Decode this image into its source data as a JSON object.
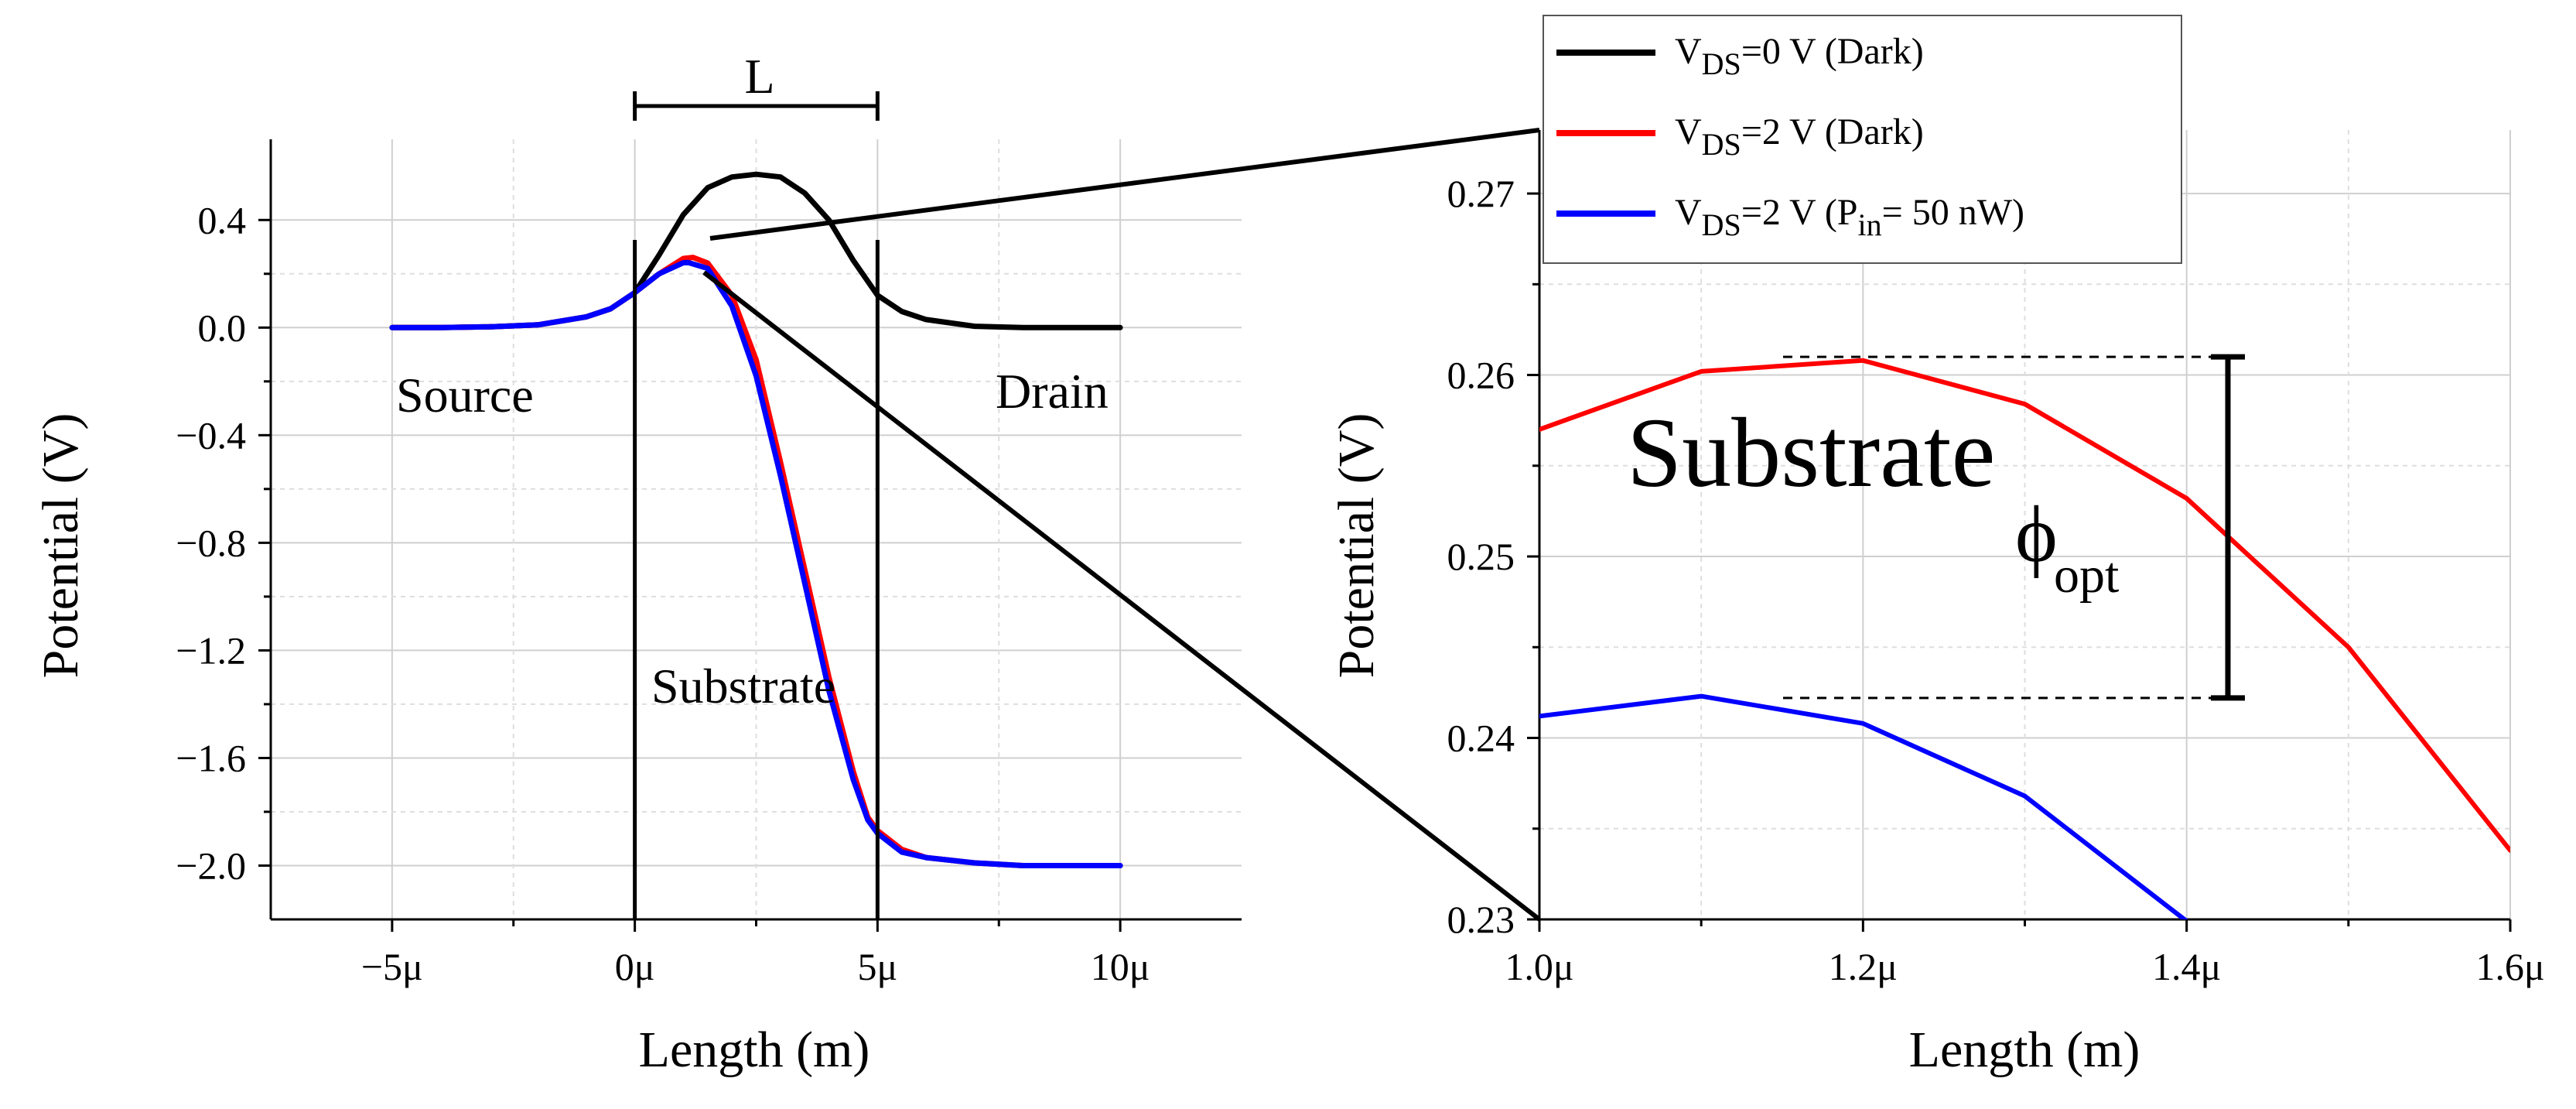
{
  "chart_data": [
    {
      "type": "line",
      "panel": "main",
      "xlabel": "Length (m)",
      "ylabel": "Potential (V)",
      "xlim": [
        -7.5,
        12.5
      ],
      "ylim": [
        -2.2,
        0.7
      ],
      "xticks": [
        -5,
        0,
        5,
        10
      ],
      "xtick_labels": [
        "−5μ",
        "0μ",
        "5μ",
        "10μ"
      ],
      "yticks": [
        0.4,
        0.0,
        -0.4,
        -0.8,
        -1.2,
        -1.6,
        -2.0
      ],
      "ytick_labels": [
        "0.4",
        "0.0",
        "−0.4",
        "−0.8",
        "−1.2",
        "−1.6",
        "−2.0"
      ],
      "grid": true,
      "annotations": {
        "channel_length_label": "L",
        "source_label": "Source",
        "drain_label": "Drain",
        "substrate_label": "Substrate",
        "channel_bounds": [
          0,
          5
        ]
      },
      "series": [
        {
          "name": "VDS=0 V (Dark)",
          "color": "#000000",
          "x": [
            -5,
            -4,
            -3,
            -2,
            -1,
            -0.5,
            0,
            0.5,
            1,
            1.5,
            2,
            2.5,
            3,
            3.5,
            4,
            4.5,
            5,
            5.5,
            6,
            7,
            8,
            9,
            10
          ],
          "y": [
            0,
            0,
            0.003,
            0.01,
            0.04,
            0.07,
            0.13,
            0.27,
            0.42,
            0.52,
            0.56,
            0.57,
            0.56,
            0.5,
            0.4,
            0.25,
            0.12,
            0.06,
            0.03,
            0.005,
            0,
            0,
            0
          ]
        },
        {
          "name": "VDS=2 V (Dark)",
          "color": "#ff0000",
          "x": [
            -5,
            -4,
            -3,
            -2,
            -1,
            -0.5,
            0,
            0.5,
            1,
            1.2,
            1.5,
            2,
            2.5,
            3,
            3.5,
            4,
            4.5,
            4.8,
            5,
            5.5,
            6,
            7,
            8,
            9,
            10
          ],
          "y": [
            0,
            0,
            0.003,
            0.01,
            0.04,
            0.07,
            0.13,
            0.2,
            0.257,
            0.261,
            0.24,
            0.12,
            -0.12,
            -0.5,
            -0.9,
            -1.3,
            -1.65,
            -1.82,
            -1.87,
            -1.94,
            -1.97,
            -1.99,
            -2.0,
            -2.0,
            -2.0
          ]
        },
        {
          "name": "VDS=2 V (Pin= 50 nW)",
          "color": "#0000ff",
          "x": [
            -5,
            -4,
            -3,
            -2,
            -1,
            -0.5,
            0,
            0.5,
            1,
            1.1,
            1.5,
            2,
            2.5,
            3,
            3.5,
            4,
            4.5,
            4.8,
            5,
            5.5,
            6,
            7,
            8,
            9,
            10
          ],
          "y": [
            0,
            0,
            0.003,
            0.01,
            0.04,
            0.07,
            0.13,
            0.2,
            0.241,
            0.242,
            0.22,
            0.08,
            -0.18,
            -0.55,
            -0.95,
            -1.35,
            -1.68,
            -1.83,
            -1.88,
            -1.95,
            -1.97,
            -1.99,
            -2.0,
            -2.0,
            -2.0
          ]
        }
      ]
    },
    {
      "type": "line",
      "panel": "inset",
      "xlabel": "Length (m)",
      "ylabel": "Potential (V)",
      "xlim": [
        1.0,
        1.6
      ],
      "ylim": [
        0.23,
        0.2735
      ],
      "xticks": [
        1.0,
        1.2,
        1.4,
        1.6
      ],
      "xtick_labels": [
        "1.0μ",
        "1.2μ",
        "1.4μ",
        "1.6μ"
      ],
      "yticks": [
        0.23,
        0.24,
        0.25,
        0.26,
        0.27
      ],
      "ytick_labels": [
        "0.23",
        "0.24",
        "0.25",
        "0.26",
        "0.27"
      ],
      "grid": true,
      "annotations": {
        "substrate_label": "Substrate",
        "phi_symbol": "ϕ",
        "phi_subscript": "opt",
        "phi_range": [
          0.2422,
          0.261
        ]
      },
      "series": [
        {
          "name": "VDS=2 V (Dark)",
          "color": "#ff0000",
          "x": [
            1.0,
            1.1,
            1.2,
            1.3,
            1.4,
            1.5,
            1.6
          ],
          "y": [
            0.257,
            0.2602,
            0.2608,
            0.2584,
            0.2532,
            0.245,
            0.2338
          ]
        },
        {
          "name": "VDS=2 V (Pin= 50 nW)",
          "color": "#0000ff",
          "x": [
            1.0,
            1.1,
            1.2,
            1.3,
            1.4
          ],
          "y": [
            0.2412,
            0.2423,
            0.2408,
            0.2368,
            0.2299
          ]
        }
      ]
    }
  ],
  "legend": {
    "placement": "top-right of main panel",
    "entries": [
      {
        "prefix": "V",
        "sub": "DS",
        "text": "=0 V (Dark)",
        "color": "#000000"
      },
      {
        "prefix": "V",
        "sub": "DS",
        "text": "=2 V (Dark)",
        "color": "#ff0000"
      },
      {
        "prefix": "V",
        "sub": "DS",
        "text": "=2 V (P",
        "sub2": "in",
        "text2": "= 50 nW)",
        "color": "#0000ff"
      }
    ]
  }
}
